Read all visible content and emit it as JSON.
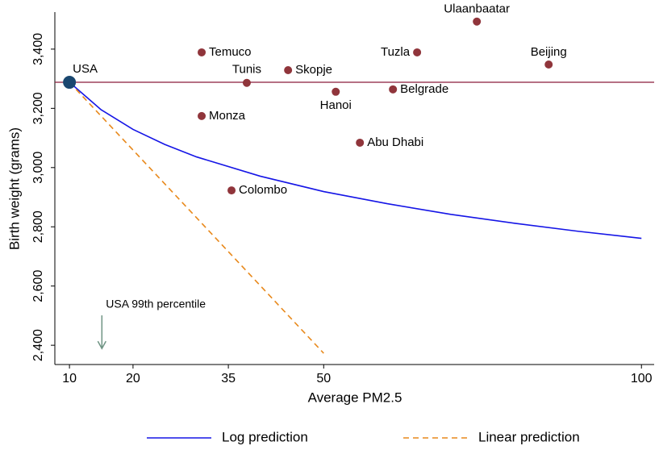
{
  "chart_data": {
    "type": "scatter",
    "x_label": "Average PM2.5",
    "y_label": "Birth weight (grams)",
    "xlim": [
      7.7,
      102
    ],
    "ylim": [
      2335,
      3525
    ],
    "xticks": [
      10,
      20,
      35,
      50,
      100
    ],
    "yticks": [
      {
        "value": 2400,
        "label": "2,400"
      },
      {
        "value": 2600,
        "label": "2,600"
      },
      {
        "value": 2800,
        "label": "2,800"
      },
      {
        "value": 3000,
        "label": "3,000"
      },
      {
        "value": 3200,
        "label": "3,200"
      },
      {
        "value": 3400,
        "label": "3,400"
      }
    ],
    "points": {
      "labels": [
        "USA",
        "Temuco",
        "Tunis",
        "Skopje",
        "Monza",
        "Colombo",
        "Hanoi",
        "Belgrade",
        "Tuzla",
        "Abu Dhabi",
        "Ulaanbaatar",
        "Beijing"
      ],
      "x": [
        10,
        30.8,
        37.9,
        44.4,
        30.8,
        35.5,
        51.9,
        60.9,
        64.7,
        55.7,
        74.1,
        85.4
      ],
      "y": [
        3288,
        3389,
        3286,
        3329,
        3174,
        2923,
        3256,
        3264,
        3389,
        3084,
        3493,
        3348
      ],
      "colors": [
        "#1a476f",
        "#90353b",
        "#90353b",
        "#90353b",
        "#90353b",
        "#90353b",
        "#90353b",
        "#90353b",
        "#90353b",
        "#90353b",
        "#90353b",
        "#90353b"
      ]
    },
    "reference_line": {
      "y": 3288,
      "color": "#8b1a3a"
    },
    "lines": [
      {
        "name": "Log prediction",
        "color": "#1515e6",
        "dashed": false,
        "x": [
          10,
          15,
          20,
          25,
          30,
          40,
          50,
          60,
          70,
          80,
          90,
          100
        ],
        "y": [
          3288,
          3195,
          3129,
          3078,
          3036,
          2971,
          2919,
          2878,
          2842,
          2812,
          2785,
          2761
        ]
      },
      {
        "name": "Linear prediction",
        "color": "#e8891c",
        "dashed": true,
        "x": [
          10,
          50
        ],
        "y": [
          3288,
          2373
        ]
      }
    ],
    "annotation": {
      "text": "USA 99th percentile",
      "x": 15.1,
      "y_start": 2501,
      "y_end": 2389,
      "color": "#6f9484"
    }
  }
}
